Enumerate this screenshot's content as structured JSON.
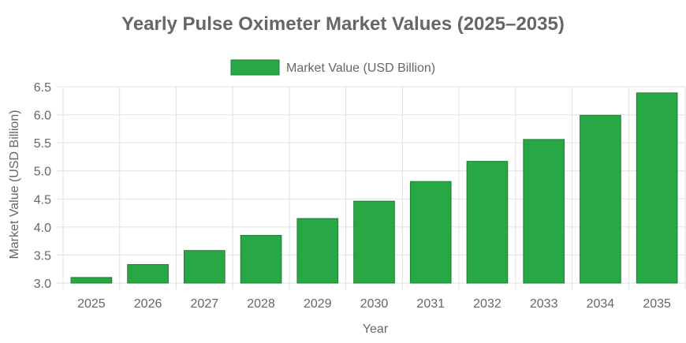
{
  "chart_data": {
    "type": "bar",
    "title": "Yearly Pulse Oximeter Market Values (2025–2035)",
    "xlabel": "Year",
    "ylabel": "Market Value (USD Billion)",
    "categories": [
      "2025",
      "2026",
      "2027",
      "2028",
      "2029",
      "2030",
      "2031",
      "2032",
      "2033",
      "2034",
      "2035"
    ],
    "series": [
      {
        "name": "Market Value (USD Billion)",
        "values": [
          3.1,
          3.33,
          3.58,
          3.85,
          4.15,
          4.46,
          4.81,
          5.17,
          5.56,
          5.99,
          6.39
        ]
      }
    ],
    "ylim": [
      3.0,
      6.5
    ],
    "yticks": [
      "3.0",
      "3.5",
      "4.0",
      "4.5",
      "5.0",
      "5.5",
      "6.0",
      "6.5"
    ],
    "grid": true,
    "legend_position": "top",
    "colors": {
      "bar": "#28a745",
      "bar_border": "#1e7e34",
      "text": "#666666",
      "title": "#666666",
      "grid": "#e0e0e0"
    }
  }
}
